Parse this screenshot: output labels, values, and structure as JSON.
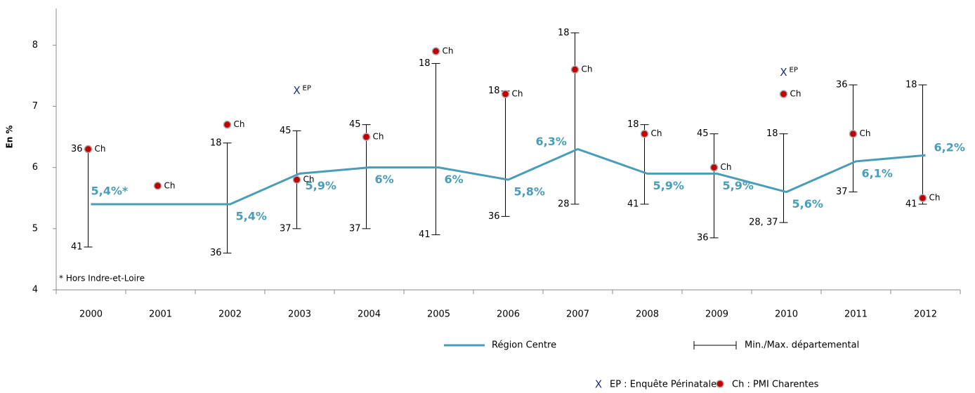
{
  "chart_data": {
    "type": "line",
    "y_label": "En %",
    "categories": [
      "2000",
      "2001",
      "2002",
      "2003",
      "2004",
      "2005",
      "2006",
      "2007",
      "2008",
      "2009",
      "2010",
      "2011",
      "2012"
    ],
    "ylim": [
      4,
      8.6
    ],
    "yticks": [
      4,
      5,
      6,
      7,
      8
    ],
    "series": [
      {
        "name": "Région Centre",
        "color": "#4a9db8",
        "values": [
          5.4,
          5.4,
          5.4,
          5.9,
          6,
          6,
          5.8,
          6.3,
          5.9,
          5.9,
          5.6,
          6.1,
          6.2
        ],
        "value_labels": [
          "5,4%*",
          null,
          "5,4%",
          "5,9%",
          "6%",
          "6%",
          "5,8%",
          "6,3%",
          "5,9%",
          "5,9%",
          "5,6%",
          "6,1%",
          "6,2%"
        ]
      }
    ],
    "range": {
      "name": "Min./Max. départemental",
      "color": "#000000",
      "min": [
        4.7,
        null,
        4.6,
        5.0,
        5.0,
        4.9,
        5.2,
        5.4,
        5.4,
        4.85,
        5.1,
        5.6,
        5.4
      ],
      "max": [
        6.3,
        null,
        6.4,
        6.6,
        6.7,
        7.7,
        7.25,
        8.2,
        6.7,
        6.55,
        6.55,
        7.35,
        7.35
      ],
      "min_labels": [
        "41",
        null,
        "36",
        "37",
        "37",
        "41",
        "36",
        "28",
        "41",
        "36",
        "28, 37",
        "37",
        "41"
      ],
      "max_labels": [
        "36",
        null,
        "18",
        "45",
        "45",
        "18",
        "18",
        "18",
        "18",
        "45",
        "18",
        "36",
        "18"
      ]
    },
    "pmi": {
      "name": "Ch : PMI Charentes",
      "label": "Ch",
      "color": "#c00000",
      "values": [
        6.3,
        5.7,
        6.7,
        5.8,
        6.5,
        7.9,
        7.2,
        7.6,
        6.55,
        6.0,
        7.2,
        6.55,
        5.5
      ]
    },
    "ep": {
      "name": "EP : Enquête Périnatale",
      "marker": "X",
      "label": "EP",
      "color": "#1f2f8f",
      "values": [
        null,
        null,
        null,
        7.25,
        null,
        null,
        null,
        null,
        null,
        null,
        7.55,
        null,
        null
      ]
    },
    "note": "* Hors Indre-et-Loire"
  }
}
